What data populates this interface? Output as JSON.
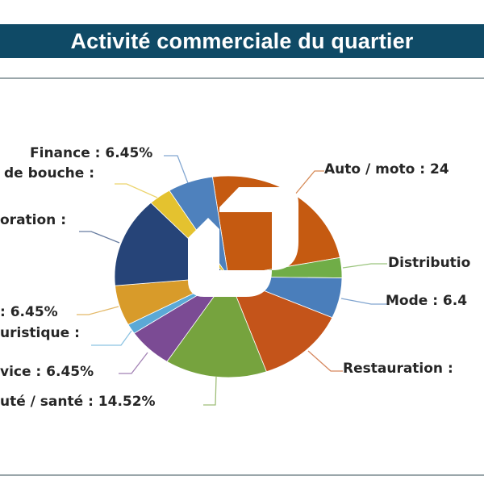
{
  "title": "Activité commerciale du quartier",
  "chart_data": {
    "type": "pie",
    "title": "Activité commerciale du quartier",
    "slices": [
      {
        "label": "Auto / moto : 24",
        "value": 24.19,
        "color": "#c55a11"
      },
      {
        "label": "Distributio",
        "value": 3.23,
        "color": "#70ad47"
      },
      {
        "label": "Mode : 6.4",
        "value": 6.45,
        "color": "#4a7ebb"
      },
      {
        "label": "Restauration :",
        "value": 12.9,
        "color": "#c4541a"
      },
      {
        "label": "uté / santé : 14.52%",
        "value": 14.52,
        "color": "#76a33e"
      },
      {
        "label": "vice : 6.45%",
        "value": 6.45,
        "color": "#7b4b94"
      },
      {
        "label": "uristique :",
        "value": 1.61,
        "color": "#5ba9d6"
      },
      {
        "label": ": 6.45%",
        "value": 6.45,
        "color": "#d89b2a"
      },
      {
        "label": "oration :",
        "value": 14.52,
        "color": "#264478"
      },
      {
        "label": "de bouche :",
        "value": 3.23,
        "color": "#e4c22f"
      },
      {
        "label": "Finance : 6.45%",
        "value": 6.45,
        "color": "#4e81bd"
      }
    ]
  }
}
